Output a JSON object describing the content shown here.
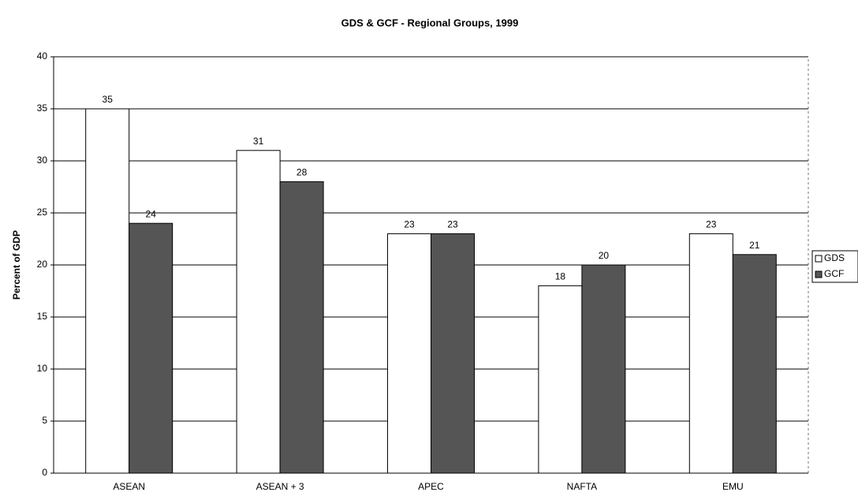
{
  "chart_data": {
    "type": "bar",
    "title": "GDS & GCF - Regional Groups, 1999",
    "y_label": "Percent of GDP",
    "categories": [
      "ASEAN",
      "ASEAN + 3",
      "APEC",
      "NAFTA",
      "EMU"
    ],
    "series": [
      {
        "name": "GDS",
        "color": "#ffffff",
        "values": [
          35,
          31,
          23,
          18,
          23
        ]
      },
      {
        "name": "GCF",
        "color": "#555555",
        "values": [
          24,
          28,
          23,
          20,
          21
        ]
      }
    ],
    "ylim": [
      0,
      40
    ],
    "yticks": [
      0,
      5,
      10,
      15,
      20,
      25,
      30,
      35,
      40
    ],
    "grid": true,
    "legend": "right"
  }
}
